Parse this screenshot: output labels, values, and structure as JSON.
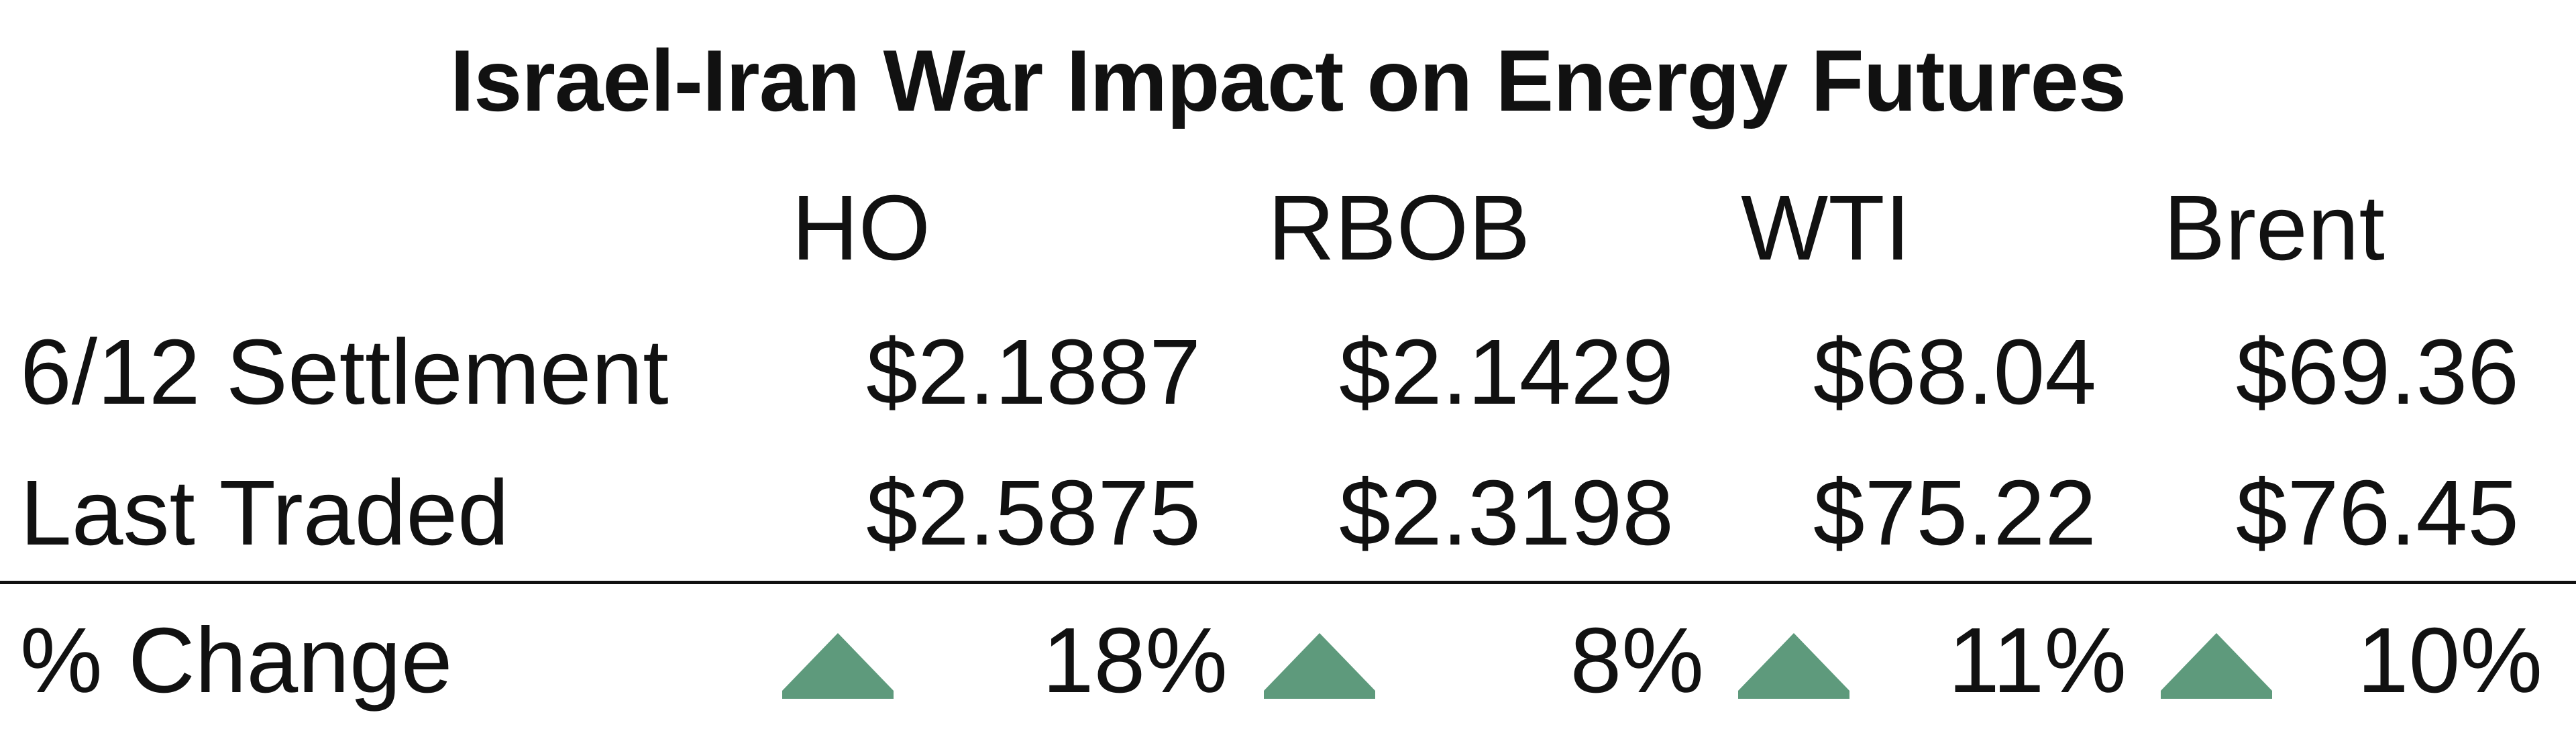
{
  "chart_data": {
    "type": "table",
    "title": "Israel-Iran War Impact on Energy Futures",
    "columns": [
      "HO",
      "RBOB",
      "WTI",
      "Brent"
    ],
    "rows": [
      {
        "label": "6/12 Settlement",
        "values": [
          "$2.1887",
          "$2.1429",
          "$68.04",
          "$69.36"
        ],
        "numeric": [
          2.1887,
          2.1429,
          68.04,
          69.36
        ]
      },
      {
        "label": "Last Traded",
        "values": [
          "$2.5875",
          "$2.3198",
          "$75.22",
          "$76.45"
        ],
        "numeric": [
          2.5875,
          2.3198,
          75.22,
          76.45
        ]
      }
    ],
    "change": {
      "label": "% Change",
      "values": [
        "18%",
        "8%",
        "11%",
        "10%"
      ],
      "numeric": [
        18,
        8,
        11,
        10
      ],
      "direction": [
        "up",
        "up",
        "up",
        "up"
      ],
      "indicator_icon": "triangle-up-icon",
      "indicator_color": "#5e9a7c"
    }
  }
}
